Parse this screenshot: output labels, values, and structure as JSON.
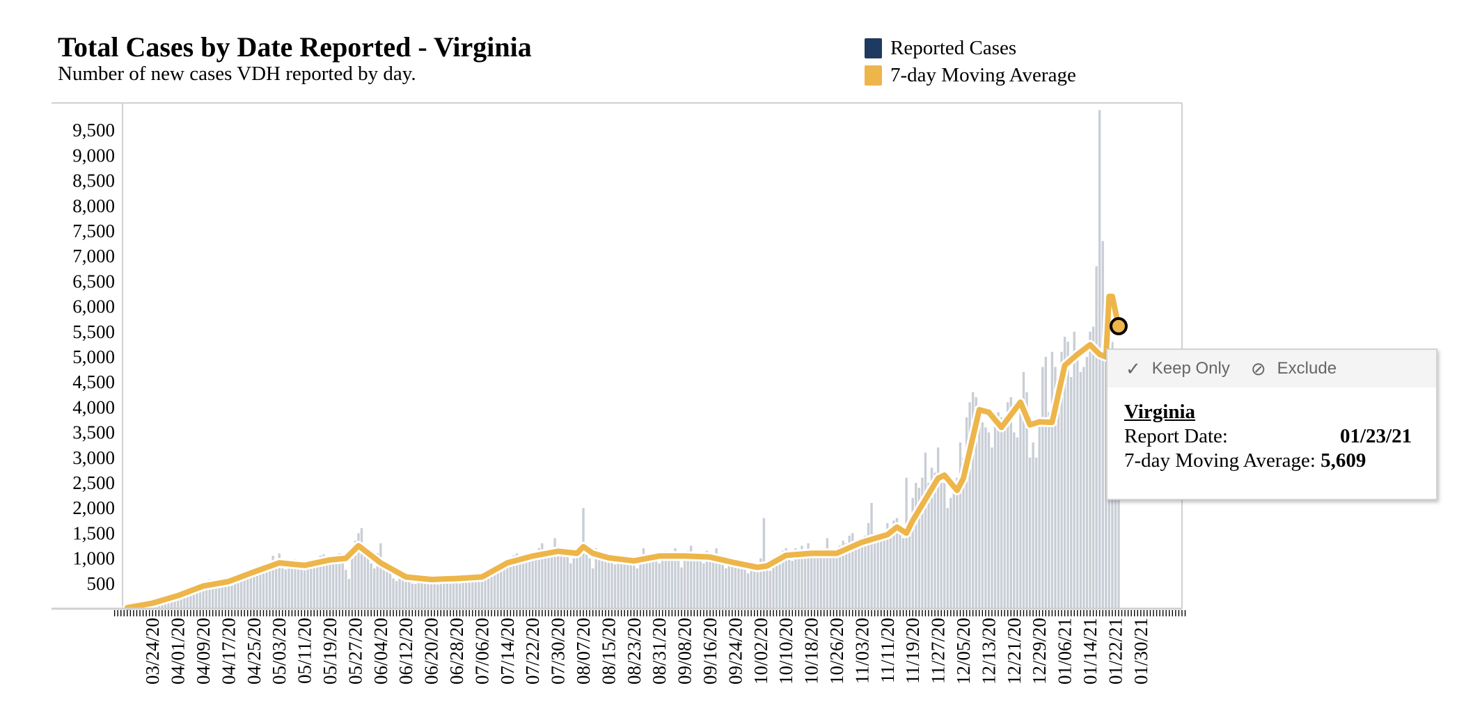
{
  "chart_data": {
    "type": "bar",
    "title": "Total Cases by Date Reported - Virginia",
    "subtitle": "Number of new cases VDH reported by day.",
    "xlabel": "",
    "ylabel": "",
    "ylim": [
      0,
      10000
    ],
    "y_ticks": [
      "500",
      "1,000",
      "1,500",
      "2,000",
      "2,500",
      "3,000",
      "3,500",
      "4,000",
      "4,500",
      "5,000",
      "5,500",
      "6,000",
      "6,500",
      "7,000",
      "7,500",
      "8,000",
      "8,500",
      "9,000",
      "9,500"
    ],
    "y_tick_values": [
      500,
      1000,
      1500,
      2000,
      2500,
      3000,
      3500,
      4000,
      4500,
      5000,
      5500,
      6000,
      6500,
      7000,
      7500,
      8000,
      8500,
      9000,
      9500
    ],
    "x_tick_labels": [
      "03/24/20",
      "04/01/20",
      "04/09/20",
      "04/17/20",
      "04/25/20",
      "05/03/20",
      "05/11/20",
      "05/19/20",
      "05/27/20",
      "06/04/20",
      "06/12/20",
      "06/20/20",
      "06/28/20",
      "07/06/20",
      "07/14/20",
      "07/22/20",
      "07/30/20",
      "08/07/20",
      "08/15/20",
      "08/23/20",
      "08/31/20",
      "09/08/20",
      "09/16/20",
      "09/24/20",
      "10/02/20",
      "10/10/20",
      "10/18/20",
      "10/26/20",
      "11/03/20",
      "11/11/20",
      "11/19/20",
      "11/27/20",
      "12/05/20",
      "12/13/20",
      "12/21/20",
      "12/29/20",
      "01/06/21",
      "01/14/21",
      "01/22/21",
      "01/30/21"
    ],
    "x_range": [
      "03/12/20",
      "02/13/21"
    ],
    "legend": {
      "placement": "top-right",
      "entries": [
        {
          "label": "Reported Cases",
          "color": "#1F3A60"
        },
        {
          "label": "7-day Moving Average",
          "color": "#EDB54A"
        }
      ]
    },
    "bar_color": "#C9CED6",
    "series": [
      {
        "name": "Reported Cases",
        "start_date": "03/15/20",
        "values": [
          6,
          10,
          12,
          18,
          30,
          35,
          48,
          60,
          80,
          100,
          110,
          140,
          170,
          180,
          190,
          230,
          250,
          260,
          300,
          320,
          380,
          360,
          380,
          400,
          450,
          480,
          520,
          580,
          500,
          460,
          520,
          550,
          610,
          640,
          500,
          600,
          560,
          620,
          690,
          720,
          740,
          760,
          800,
          700,
          760,
          820,
          880,
          1050,
          940,
          1100,
          800,
          780,
          880,
          940,
          980,
          850,
          820,
          760,
          860,
          900,
          950,
          1000,
          1050,
          1080,
          900,
          880,
          1050,
          1000,
          1100,
          960,
          770,
          590,
          1000,
          1350,
          1500,
          1600,
          1250,
          1050,
          900,
          800,
          1100,
          1300,
          920,
          750,
          800,
          600,
          550,
          700,
          680,
          720,
          650,
          500,
          490,
          550,
          560,
          620,
          600,
          560,
          520,
          480,
          560,
          600,
          620,
          640,
          600,
          560,
          500,
          600,
          620,
          700,
          640,
          580,
          540,
          560,
          620,
          650,
          700,
          760,
          900,
          940,
          970,
          980,
          1000,
          1060,
          1100,
          1050,
          1000,
          1050,
          1100,
          1000,
          1080,
          1200,
          1300,
          1050,
          1040,
          1100,
          1400,
          1150,
          1160,
          1100,
          1050,
          900,
          1000,
          1100,
          1200,
          2000,
          1300,
          1000,
          800,
          1200,
          1100,
          1050,
          1000,
          950,
          950,
          880,
          1000,
          1050,
          1020,
          1000,
          950,
          900,
          800,
          950,
          1200,
          1000,
          1100,
          1000,
          1100,
          900,
          1000,
          1150,
          1050,
          1100,
          1200,
          950,
          820,
          1100,
          1150,
          1250,
          1100,
          1050,
          1000,
          900,
          1150,
          1050,
          1100,
          1200,
          1050,
          950,
          800,
          900,
          950,
          900,
          850,
          880,
          780,
          700,
          820,
          800,
          850,
          1000,
          1800,
          900,
          750,
          1000,
          1050,
          1100,
          1150,
          1200,
          1100,
          950,
          1200,
          1050,
          1250,
          1100,
          1300,
          1150,
          1000,
          1050,
          1100,
          1200,
          1400,
          1100,
          1150,
          1050,
          1250,
          1350,
          1300,
          1450,
          1500,
          1200,
          1250,
          1300,
          1450,
          1700,
          2100,
          1500,
          1400,
          1350,
          1500,
          1700,
          1600,
          1750,
          1800,
          1500,
          1400,
          2600,
          1700,
          2200,
          2500,
          2400,
          2600,
          3100,
          2500,
          2800,
          2700,
          3200,
          2500,
          2500,
          2000,
          2200,
          2400,
          2600,
          3300,
          3000,
          3800,
          4100,
          4300,
          4200,
          4000,
          3700,
          3600,
          3500,
          3200,
          3700,
          3900,
          3800,
          3600,
          4100,
          4200,
          3500,
          3400,
          4000,
          4700,
          4300,
          3000,
          3300,
          3000,
          3800,
          4800,
          5000,
          3900,
          5100,
          4800,
          4300,
          5100,
          5400,
          5300,
          4600,
          5500,
          5100,
          4700,
          4800,
          5000,
          5500,
          5600,
          6800,
          9900,
          7300,
          5400,
          4800,
          5300,
          5100,
          4900
        ]
      },
      {
        "name": "7-day Moving Average",
        "dates": [
          "03/16/20",
          "03/24/20",
          "04/01/20",
          "04/09/20",
          "04/17/20",
          "04/25/20",
          "05/03/20",
          "05/11/20",
          "05/19/20",
          "05/24/20",
          "05/28/20",
          "06/04/20",
          "06/12/20",
          "06/20/20",
          "06/28/20",
          "07/06/20",
          "07/14/20",
          "07/22/20",
          "07/30/20",
          "08/05/20",
          "08/07/20",
          "08/10/20",
          "08/15/20",
          "08/23/20",
          "08/31/20",
          "09/08/20",
          "09/16/20",
          "09/24/20",
          "10/01/20",
          "10/04/20",
          "10/10/20",
          "10/18/20",
          "10/26/20",
          "11/03/20",
          "11/11/20",
          "11/14/20",
          "11/17/20",
          "11/19/20",
          "11/27/20",
          "11/29/20",
          "12/03/20",
          "12/05/20",
          "12/10/20",
          "12/13/20",
          "12/17/20",
          "12/23/20",
          "12/26/20",
          "12/29/20",
          "01/02/21",
          "01/06/21",
          "01/10/21",
          "01/14/21",
          "01/17/21",
          "01/19/21",
          "01/20/21",
          "01/21/21",
          "01/22/21",
          "01/23/21"
        ],
        "values": [
          20,
          110,
          260,
          450,
          540,
          730,
          910,
          860,
          970,
          1000,
          1250,
          910,
          630,
          580,
          600,
          630,
          910,
          1045,
          1140,
          1100,
          1230,
          1100,
          1010,
          950,
          1045,
          1045,
          1025,
          910,
          820,
          850,
          1060,
          1100,
          1100,
          1320,
          1470,
          1620,
          1500,
          1750,
          2590,
          2650,
          2350,
          2590,
          3950,
          3900,
          3600,
          4100,
          3650,
          3710,
          3700,
          4830,
          5050,
          5240,
          5050,
          5000,
          6200,
          6200,
          5900,
          5609
        ]
      }
    ],
    "tooltip": {
      "keep_only": "Keep Only",
      "exclude": "Exclude",
      "name": "Virginia",
      "report_date_label": "Report Date:",
      "report_date": "01/23/21",
      "avg_label": "7-day Moving Average:",
      "avg_value": "5,609",
      "highlight_date": "01/23/21",
      "highlight_value": 5609
    }
  }
}
